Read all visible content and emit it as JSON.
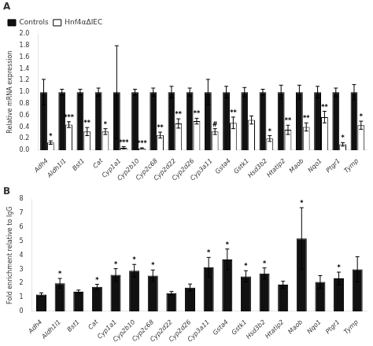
{
  "chart_data": [
    {
      "type": "bar",
      "title": "A",
      "categories": [
        "Adh4",
        "Aldh1l1",
        "Bst1",
        "Cat",
        "Cyp1a1",
        "Cyp2b10",
        "Cyp2c68",
        "Cyp2d22",
        "Cyp2d26",
        "Cyp3a11",
        "Gsta4",
        "Gstk1",
        "Hsd3b2",
        "Htatip2",
        "Maob",
        "Nqo1",
        "Ptgr1",
        "Tymp"
      ],
      "series": [
        {
          "name": "Controls",
          "color": "#111111",
          "values": [
            1.0,
            1.0,
            1.0,
            1.0,
            1.0,
            1.0,
            1.0,
            1.0,
            1.0,
            1.0,
            1.0,
            1.0,
            1.0,
            1.0,
            1.0,
            1.0,
            1.0,
            1.0
          ],
          "errors": [
            0.22,
            0.05,
            0.05,
            0.07,
            0.8,
            0.05,
            0.07,
            0.1,
            0.07,
            0.22,
            0.1,
            0.08,
            0.05,
            0.12,
            0.12,
            0.1,
            0.07,
            0.13
          ]
        },
        {
          "name": "Hnf4αΔIEC",
          "color": "#ffffff",
          "values": [
            0.13,
            0.44,
            0.32,
            0.32,
            0.04,
            0.03,
            0.26,
            0.46,
            0.5,
            0.32,
            0.47,
            0.52,
            0.2,
            0.35,
            0.4,
            0.57,
            0.1,
            0.43
          ],
          "errors": [
            0.03,
            0.05,
            0.07,
            0.05,
            0.02,
            0.01,
            0.05,
            0.08,
            0.05,
            0.05,
            0.1,
            0.07,
            0.05,
            0.08,
            0.07,
            0.1,
            0.03,
            0.07
          ],
          "significance": [
            "*",
            "***",
            "**",
            "*",
            "***",
            "***",
            "**",
            "**",
            "**",
            "#",
            "**",
            null,
            "*",
            "**",
            "**",
            "**",
            "*",
            "*"
          ]
        }
      ],
      "y_label": "Relative mRNA expression",
      "ylim": [
        0,
        2.0
      ],
      "yticks": [
        {
          "value": 0,
          "label": "0.0"
        },
        0.2,
        0.4,
        0.6,
        0.8,
        {
          "value": 1,
          "label": "1.0"
        },
        1.2,
        1.4,
        1.6,
        1.8,
        {
          "value": 2,
          "label": "2.0"
        }
      ],
      "grid": false,
      "legend": "upper left"
    },
    {
      "type": "bar",
      "title": "B",
      "categories": [
        "Adh4",
        "Aldh1l1",
        "Bst1",
        "Cat",
        "Cyp1a1",
        "Cyp2b10",
        "Cyp2c68",
        "Cyp2d22",
        "Cyp2d26",
        "Cyp3a11",
        "Gsta4",
        "Gstk1",
        "Hsd3b2",
        "Htatip2",
        "Maob",
        "Nqo1",
        "Ptgr1",
        "Tymp"
      ],
      "values": [
        1.2,
        2.0,
        1.4,
        1.75,
        2.6,
        2.9,
        2.55,
        1.3,
        1.7,
        3.15,
        3.7,
        2.5,
        2.7,
        1.9,
        5.2,
        2.1,
        2.35,
        3.0
      ],
      "errors": [
        0.12,
        0.35,
        0.12,
        0.18,
        0.45,
        0.45,
        0.4,
        0.12,
        0.25,
        0.7,
        0.75,
        0.4,
        0.4,
        0.25,
        2.2,
        0.45,
        0.45,
        0.9
      ],
      "significance": [
        null,
        "*",
        null,
        "*",
        "*",
        "*",
        "*",
        null,
        null,
        "*",
        "*",
        "*",
        "*",
        null,
        "*",
        null,
        "*",
        null
      ],
      "color": "#111111",
      "y_label": "Fold enrichment relative to IgG",
      "ylim": [
        0,
        8
      ],
      "yticks": [
        0,
        1,
        2,
        3,
        4,
        5,
        6,
        7,
        8
      ],
      "grid": false
    }
  ]
}
